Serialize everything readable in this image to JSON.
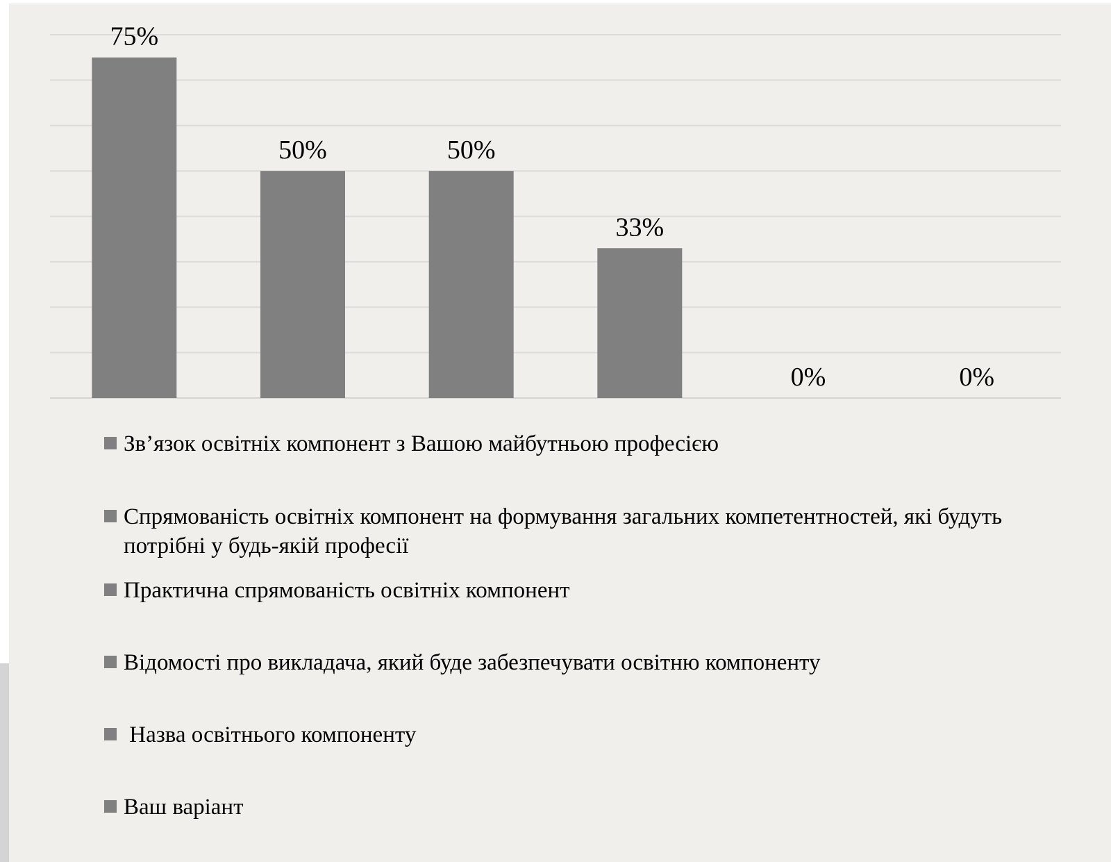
{
  "chart_data": {
    "type": "bar",
    "title": "",
    "xlabel": "",
    "ylabel": "",
    "ylim": [
      0,
      80
    ],
    "grid": true,
    "legend_position": "bottom",
    "categories": [
      "Зв’язок освітніх компонент з Вашою майбутньою професією",
      "Спрямованість освітніх компонент на формування загальних компетентностей, які будуть потрібні у будь-якій професії",
      "Практична спрямованість освітніх компонент",
      "Відомості про викладача, який буде забезпечувати освітню компоненту",
      " Назва освітнього компоненту",
      "Ваш варіант"
    ],
    "values": [
      75,
      50,
      50,
      33,
      0,
      0
    ],
    "data_labels": [
      "75%",
      "50%",
      "50%",
      "33%",
      "0%",
      "0%"
    ],
    "bar_color": "#808080"
  }
}
